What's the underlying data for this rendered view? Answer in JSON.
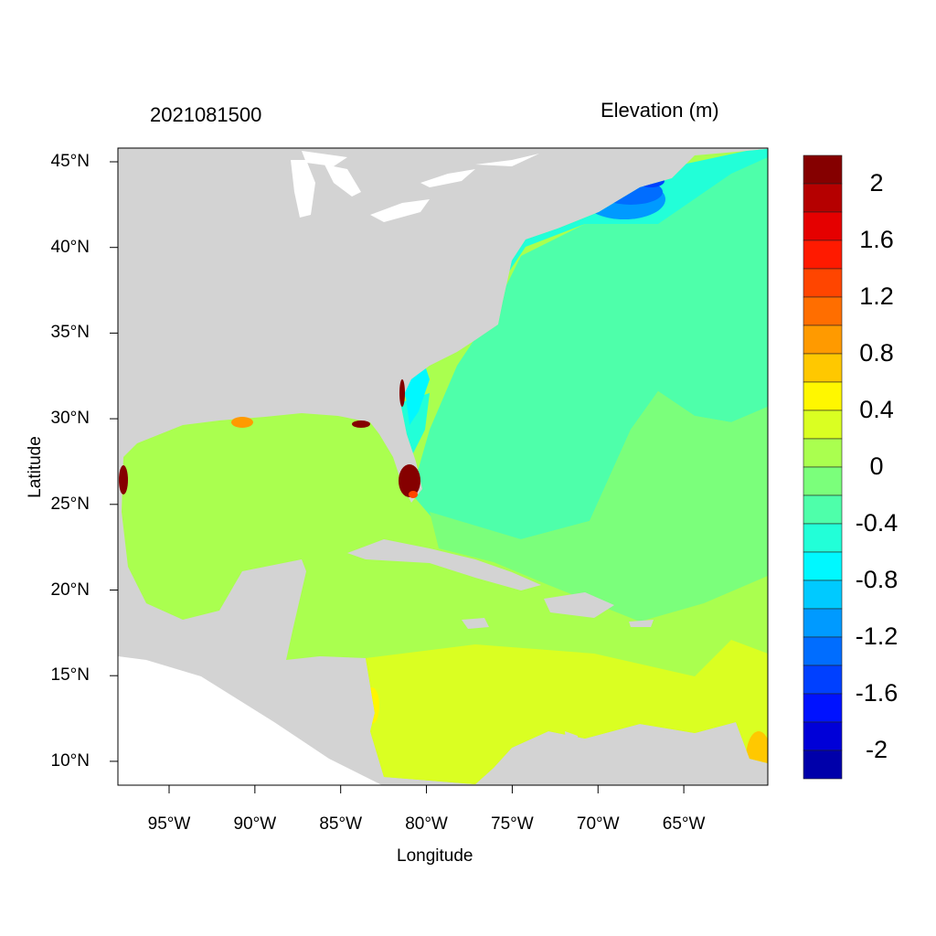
{
  "timestamp": "2021081500",
  "legend_title": "Elevation (m)",
  "xlabel": "Longitude",
  "ylabel": "Latitude",
  "lon_ticks": [
    "95°W",
    "90°W",
    "85°W",
    "80°W",
    "75°W",
    "70°W",
    "65°W"
  ],
  "lon_values": [
    -95,
    -90,
    -85,
    -80,
    -75,
    -70,
    -65
  ],
  "lat_ticks": [
    "45°N",
    "40°N",
    "35°N",
    "30°N",
    "25°N",
    "20°N",
    "15°N",
    "10°N"
  ],
  "lat_values": [
    45,
    40,
    35,
    30,
    25,
    20,
    15,
    10
  ],
  "extent": {
    "lon": [
      -98,
      -60.1
    ],
    "lat": [
      8.6,
      45.8
    ]
  },
  "colorbar": {
    "labels": [
      "2",
      "1.6",
      "1.2",
      "0.8",
      "0.4",
      "0",
      "-0.4",
      "-0.8",
      "-1.2",
      "-1.6",
      "-2"
    ],
    "label_values": [
      2,
      1.6,
      1.2,
      0.8,
      0.4,
      0,
      -0.4,
      -0.8,
      -1.2,
      -1.6,
      -2
    ],
    "level_step": 0.2,
    "colors": [
      "#850000",
      "#B50000",
      "#E50000",
      "#FF1A00",
      "#FF4500",
      "#FF6E00",
      "#FF9A00",
      "#FFC800",
      "#FFF700",
      "#DAFF22",
      "#AAFF4F",
      "#7BFF7B",
      "#4EFFAA",
      "#22FFD8",
      "#00F8FF",
      "#00CAFF",
      "#009AFF",
      "#006DFF",
      "#0040FF",
      "#0012FF",
      "#0000D8",
      "#0000AA"
    ]
  },
  "colors": {
    "land": "#D3D3D3",
    "no_data": "#FFFFFF"
  }
}
